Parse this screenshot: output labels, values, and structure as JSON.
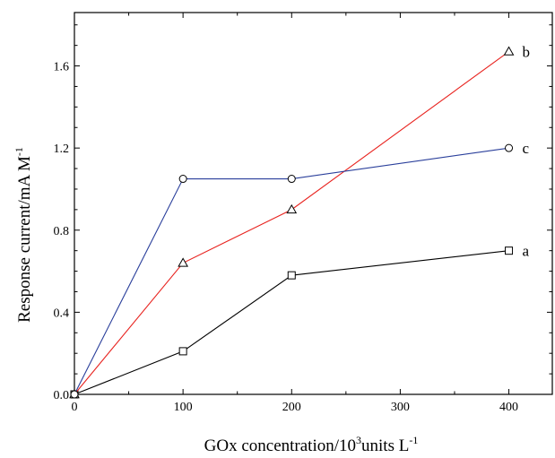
{
  "chart_data": {
    "type": "line",
    "title": "",
    "xlabel": {
      "text": "GOx concentration/10",
      "sup": "3",
      "text2": "units L",
      "sup2": "-1"
    },
    "ylabel": {
      "text": "Response current/mA M",
      "sup": "-1"
    },
    "xlim": [
      0,
      440
    ],
    "ylim": [
      0,
      1.86
    ],
    "x_ticks": [
      0,
      100,
      200,
      300,
      400
    ],
    "x_tick_labels": [
      "0",
      "100",
      "200",
      "300",
      "400"
    ],
    "y_ticks": [
      0.0,
      0.4,
      0.8,
      1.2,
      1.6
    ],
    "y_tick_labels": [
      "0.0",
      "0.4",
      "0.8",
      "1.2",
      "1.6"
    ],
    "grid": false,
    "legend": "inline-right",
    "series": [
      {
        "name": "a",
        "color": "#000000",
        "marker": "square",
        "x": [
          0,
          100,
          200,
          400
        ],
        "y": [
          0.0,
          0.21,
          0.58,
          0.7
        ]
      },
      {
        "name": "b",
        "color": "#e8231f",
        "marker": "triangle",
        "x": [
          0,
          100,
          200,
          400
        ],
        "y": [
          0.0,
          0.64,
          0.9,
          1.67
        ]
      },
      {
        "name": "c",
        "color": "#2a3f9b",
        "marker": "circle",
        "x": [
          0,
          100,
          200,
          400
        ],
        "y": [
          0.0,
          1.05,
          1.05,
          1.2
        ]
      }
    ]
  }
}
